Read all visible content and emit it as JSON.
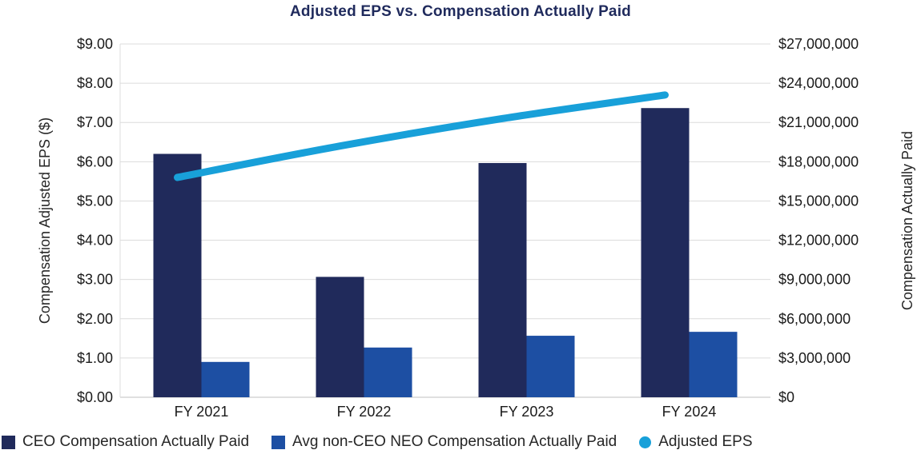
{
  "title": "Adjusted EPS vs. Compensation Actually Paid",
  "chart_data": {
    "type": "bar",
    "subtype": "grouped-bars-with-line-combo",
    "categories": [
      "FY 2021",
      "FY 2022",
      "FY 2023",
      "FY 2024"
    ],
    "series": [
      {
        "name": "CEO Compensation Actually Paid",
        "kind": "bar",
        "axis": "right",
        "color": "#202A5B",
        "values": [
          18600000,
          9200000,
          17900000,
          22100000
        ]
      },
      {
        "name": "Avg non-CEO NEO Compensation Actually Paid",
        "kind": "bar",
        "axis": "right",
        "color": "#1D4FA3",
        "values": [
          2700000,
          3800000,
          4700000,
          5000000
        ]
      },
      {
        "name": "Adjusted EPS",
        "kind": "line",
        "axis": "left",
        "color": "#18A0D9",
        "values": [
          5.6,
          6.4,
          7.1,
          7.7
        ]
      }
    ],
    "left_axis": {
      "label": "Compensation Adjusted EPS ($)",
      "min": 0,
      "max": 9,
      "step": 1,
      "ticks": [
        "$0.00",
        "$1.00",
        "$2.00",
        "$3.00",
        "$4.00",
        "$5.00",
        "$6.00",
        "$7.00",
        "$8.00",
        "$9.00"
      ]
    },
    "right_axis": {
      "label": "Compensation Actually Paid",
      "min": 0,
      "max": 27000000,
      "step": 3000000,
      "ticks": [
        "$0",
        "$3,000,000",
        "$6,000,000",
        "$9,000,000",
        "$12,000,000",
        "$15,000,000",
        "$18,000,000",
        "$21,000,000",
        "$24,000,000",
        "$27,000,000"
      ]
    },
    "grid": "horizontal",
    "legend_position": "bottom"
  },
  "colors": {
    "title": "#1F2A5C",
    "tick_text": "#1A1A1A",
    "gridline": "#DCDCDC",
    "axis_line": "#C2C2C2"
  }
}
